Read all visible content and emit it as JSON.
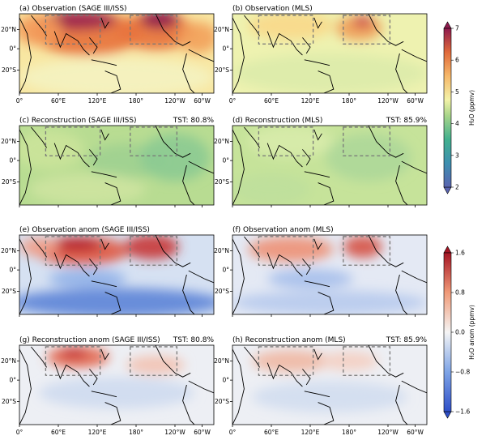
{
  "chart_data": [
    {
      "type": "heatmap",
      "colormap": "viridis-like",
      "panels": [
        {
          "id": "a",
          "title": "(a) Observation (SAGE III/ISS)",
          "tst": "",
          "show_xticks": true
        },
        {
          "id": "b",
          "title": "(b) Observation (MLS)",
          "tst": "",
          "show_xticks": true
        },
        {
          "id": "c",
          "title": "(c) Reconstruction (SAGE III/ISS)",
          "tst": "TST: 80.8%",
          "show_xticks": false
        },
        {
          "id": "d",
          "title": "(d) Reconstruction (MLS)",
          "tst": "TST: 85.9%",
          "show_xticks": false
        }
      ],
      "colorbar": {
        "label": "H₂O (ppmv)",
        "ticks": [
          "2",
          "3",
          "4",
          "5",
          "6",
          "7"
        ],
        "range": [
          2,
          7
        ]
      }
    },
    {
      "type": "heatmap",
      "colormap": "coolwarm",
      "panels": [
        {
          "id": "e",
          "title": "(e) Observation anom (SAGE III/ISS)",
          "tst": "",
          "show_xticks": false
        },
        {
          "id": "f",
          "title": "(f) Observation anom (MLS)",
          "tst": "",
          "show_xticks": false
        },
        {
          "id": "g",
          "title": "(g) Reconstruction anom (SAGE III/ISS)",
          "tst": "TST: 80.8%",
          "show_xticks": true
        },
        {
          "id": "h",
          "title": "(h) Reconstruction anom (MLS)",
          "tst": "TST: 85.9%",
          "show_xticks": true
        }
      ],
      "colorbar": {
        "label": "H₂O anom (ppmv)",
        "ticks": [
          "1.6",
          "0.8",
          "0.0",
          "−0.8",
          "−1.6"
        ],
        "range": [
          -1.6,
          1.6
        ]
      }
    }
  ],
  "axes": {
    "x_tick_labels": [
      "0°",
      "60°E",
      "120°E",
      "180°",
      "120°W",
      "60°W"
    ],
    "y_tick_labels": [
      "20°N",
      "0°",
      "20°S"
    ]
  }
}
